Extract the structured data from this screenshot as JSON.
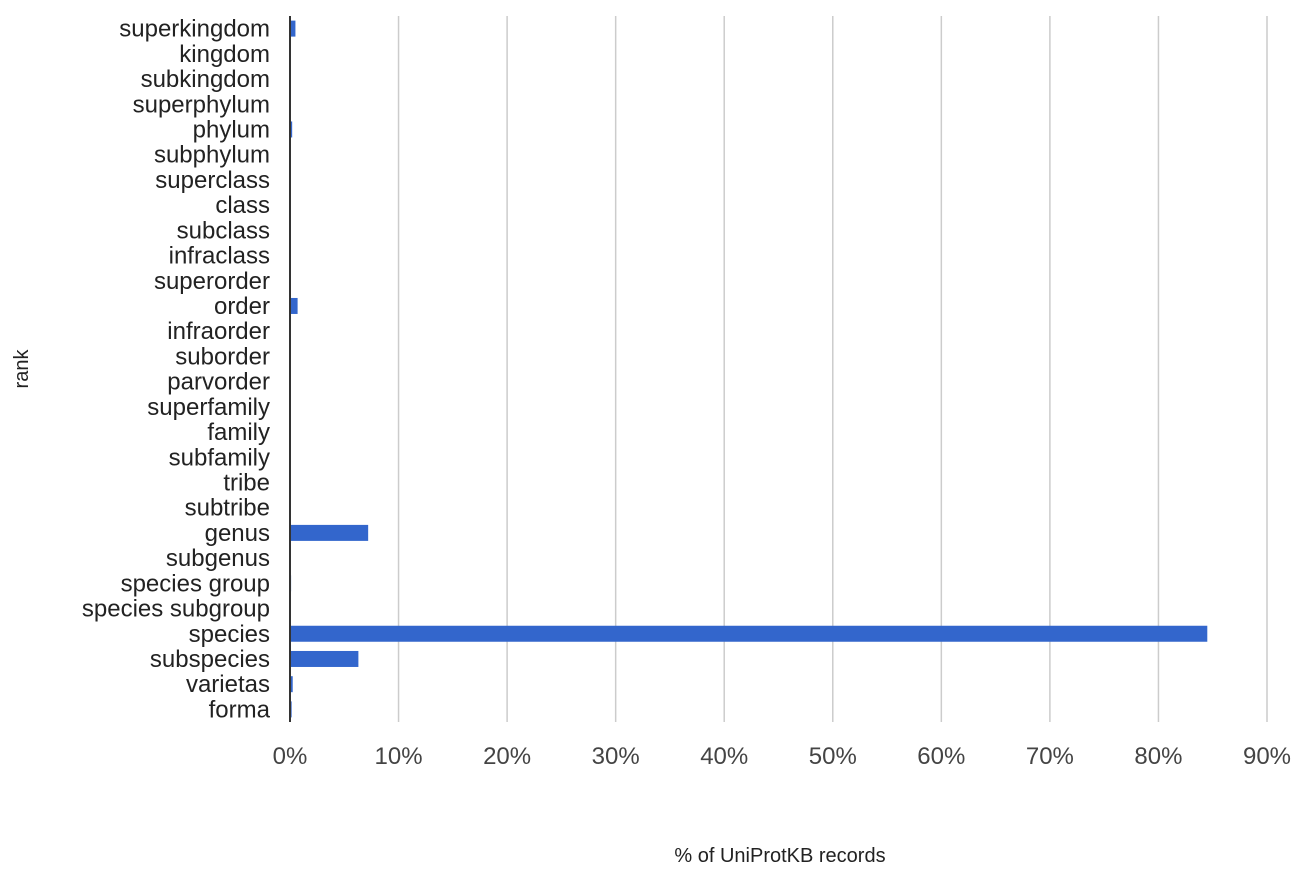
{
  "chart_data": {
    "type": "bar",
    "orientation": "horizontal",
    "categories": [
      "superkingdom",
      "kingdom",
      "subkingdom",
      "superphylum",
      "phylum",
      "subphylum",
      "superclass",
      "class",
      "subclass",
      "infraclass",
      "superorder",
      "order",
      "infraorder",
      "suborder",
      "parvorder",
      "superfamily",
      "family",
      "subfamily",
      "tribe",
      "subtribe",
      "genus",
      "subgenus",
      "species group",
      "species subgroup",
      "species",
      "subspecies",
      "varietas",
      "forma"
    ],
    "values": [
      0.5,
      0.02,
      0.0,
      0.0,
      0.2,
      0.02,
      0.0,
      0.05,
      0.03,
      0.0,
      0.0,
      0.7,
      0.0,
      0.02,
      0.0,
      0.02,
      0.05,
      0.03,
      0.02,
      0.01,
      7.2,
      0.05,
      0.1,
      0.05,
      84.5,
      6.3,
      0.25,
      0.15
    ],
    "xlabel": "% of UniProtKB records",
    "ylabel": "rank",
    "xlim": [
      0,
      90
    ],
    "xticks": [
      "0%",
      "10%",
      "20%",
      "30%",
      "40%",
      "50%",
      "60%",
      "70%",
      "80%",
      "90%"
    ],
    "grid": "vertical",
    "bar_color": "#3366cc",
    "grid_color": "#cccccc"
  }
}
